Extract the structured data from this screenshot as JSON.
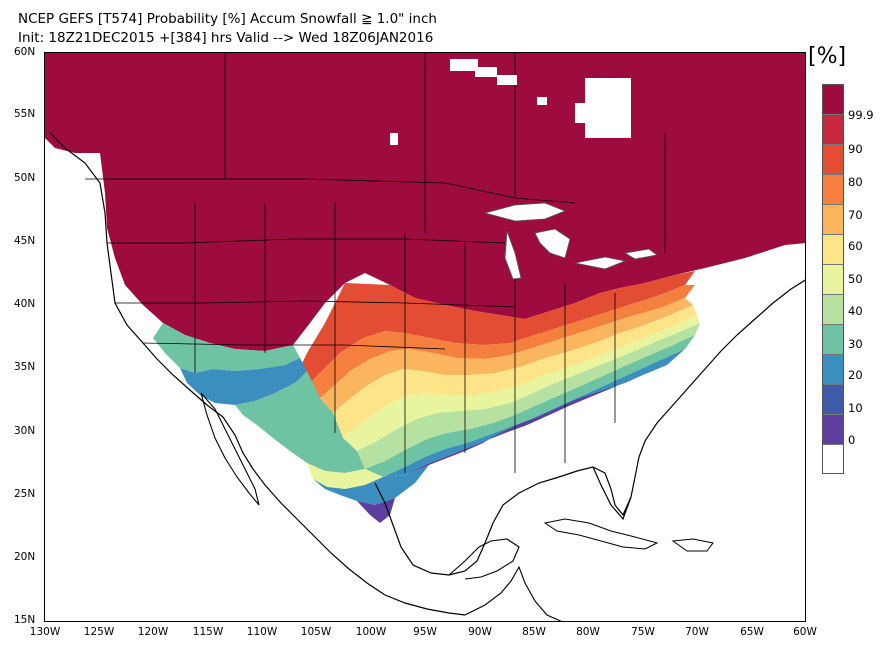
{
  "header": {
    "title_line1": "NCEP GEFS [T574] Probability [%] Accum Snowfall ≧ 1.0\" inch",
    "title_line2": "Init: 18Z21DEC2015   +[384] hrs Valid --> Wed 18Z06JAN2016"
  },
  "axes": {
    "lat_labels": [
      "60N",
      "55N",
      "50N",
      "45N",
      "40N",
      "35N",
      "30N",
      "25N",
      "20N",
      "15N"
    ],
    "lon_labels": [
      "130W",
      "125W",
      "120W",
      "115W",
      "110W",
      "105W",
      "100W",
      "95W",
      "90W",
      "85W",
      "80W",
      "75W",
      "70W",
      "65W",
      "60W"
    ]
  },
  "colorbar": {
    "unit": "[%]",
    "labels": [
      "99.9",
      "90",
      "80",
      "70",
      "60",
      "50",
      "40",
      "30",
      "20",
      "10",
      "0"
    ],
    "colors": [
      "#9e0b3f",
      "#c8283e",
      "#e24d33",
      "#f47f3e",
      "#fbb55f",
      "#fde489",
      "#e9f59e",
      "#b6e1a0",
      "#6ec4a2",
      "#3a8fbe",
      "#3e5aa8",
      "#5c3f9e",
      "#ffffff"
    ]
  },
  "map": {
    "background": "#ffffff",
    "coast_color": "#000000",
    "lake_outline_color": "#888888"
  }
}
